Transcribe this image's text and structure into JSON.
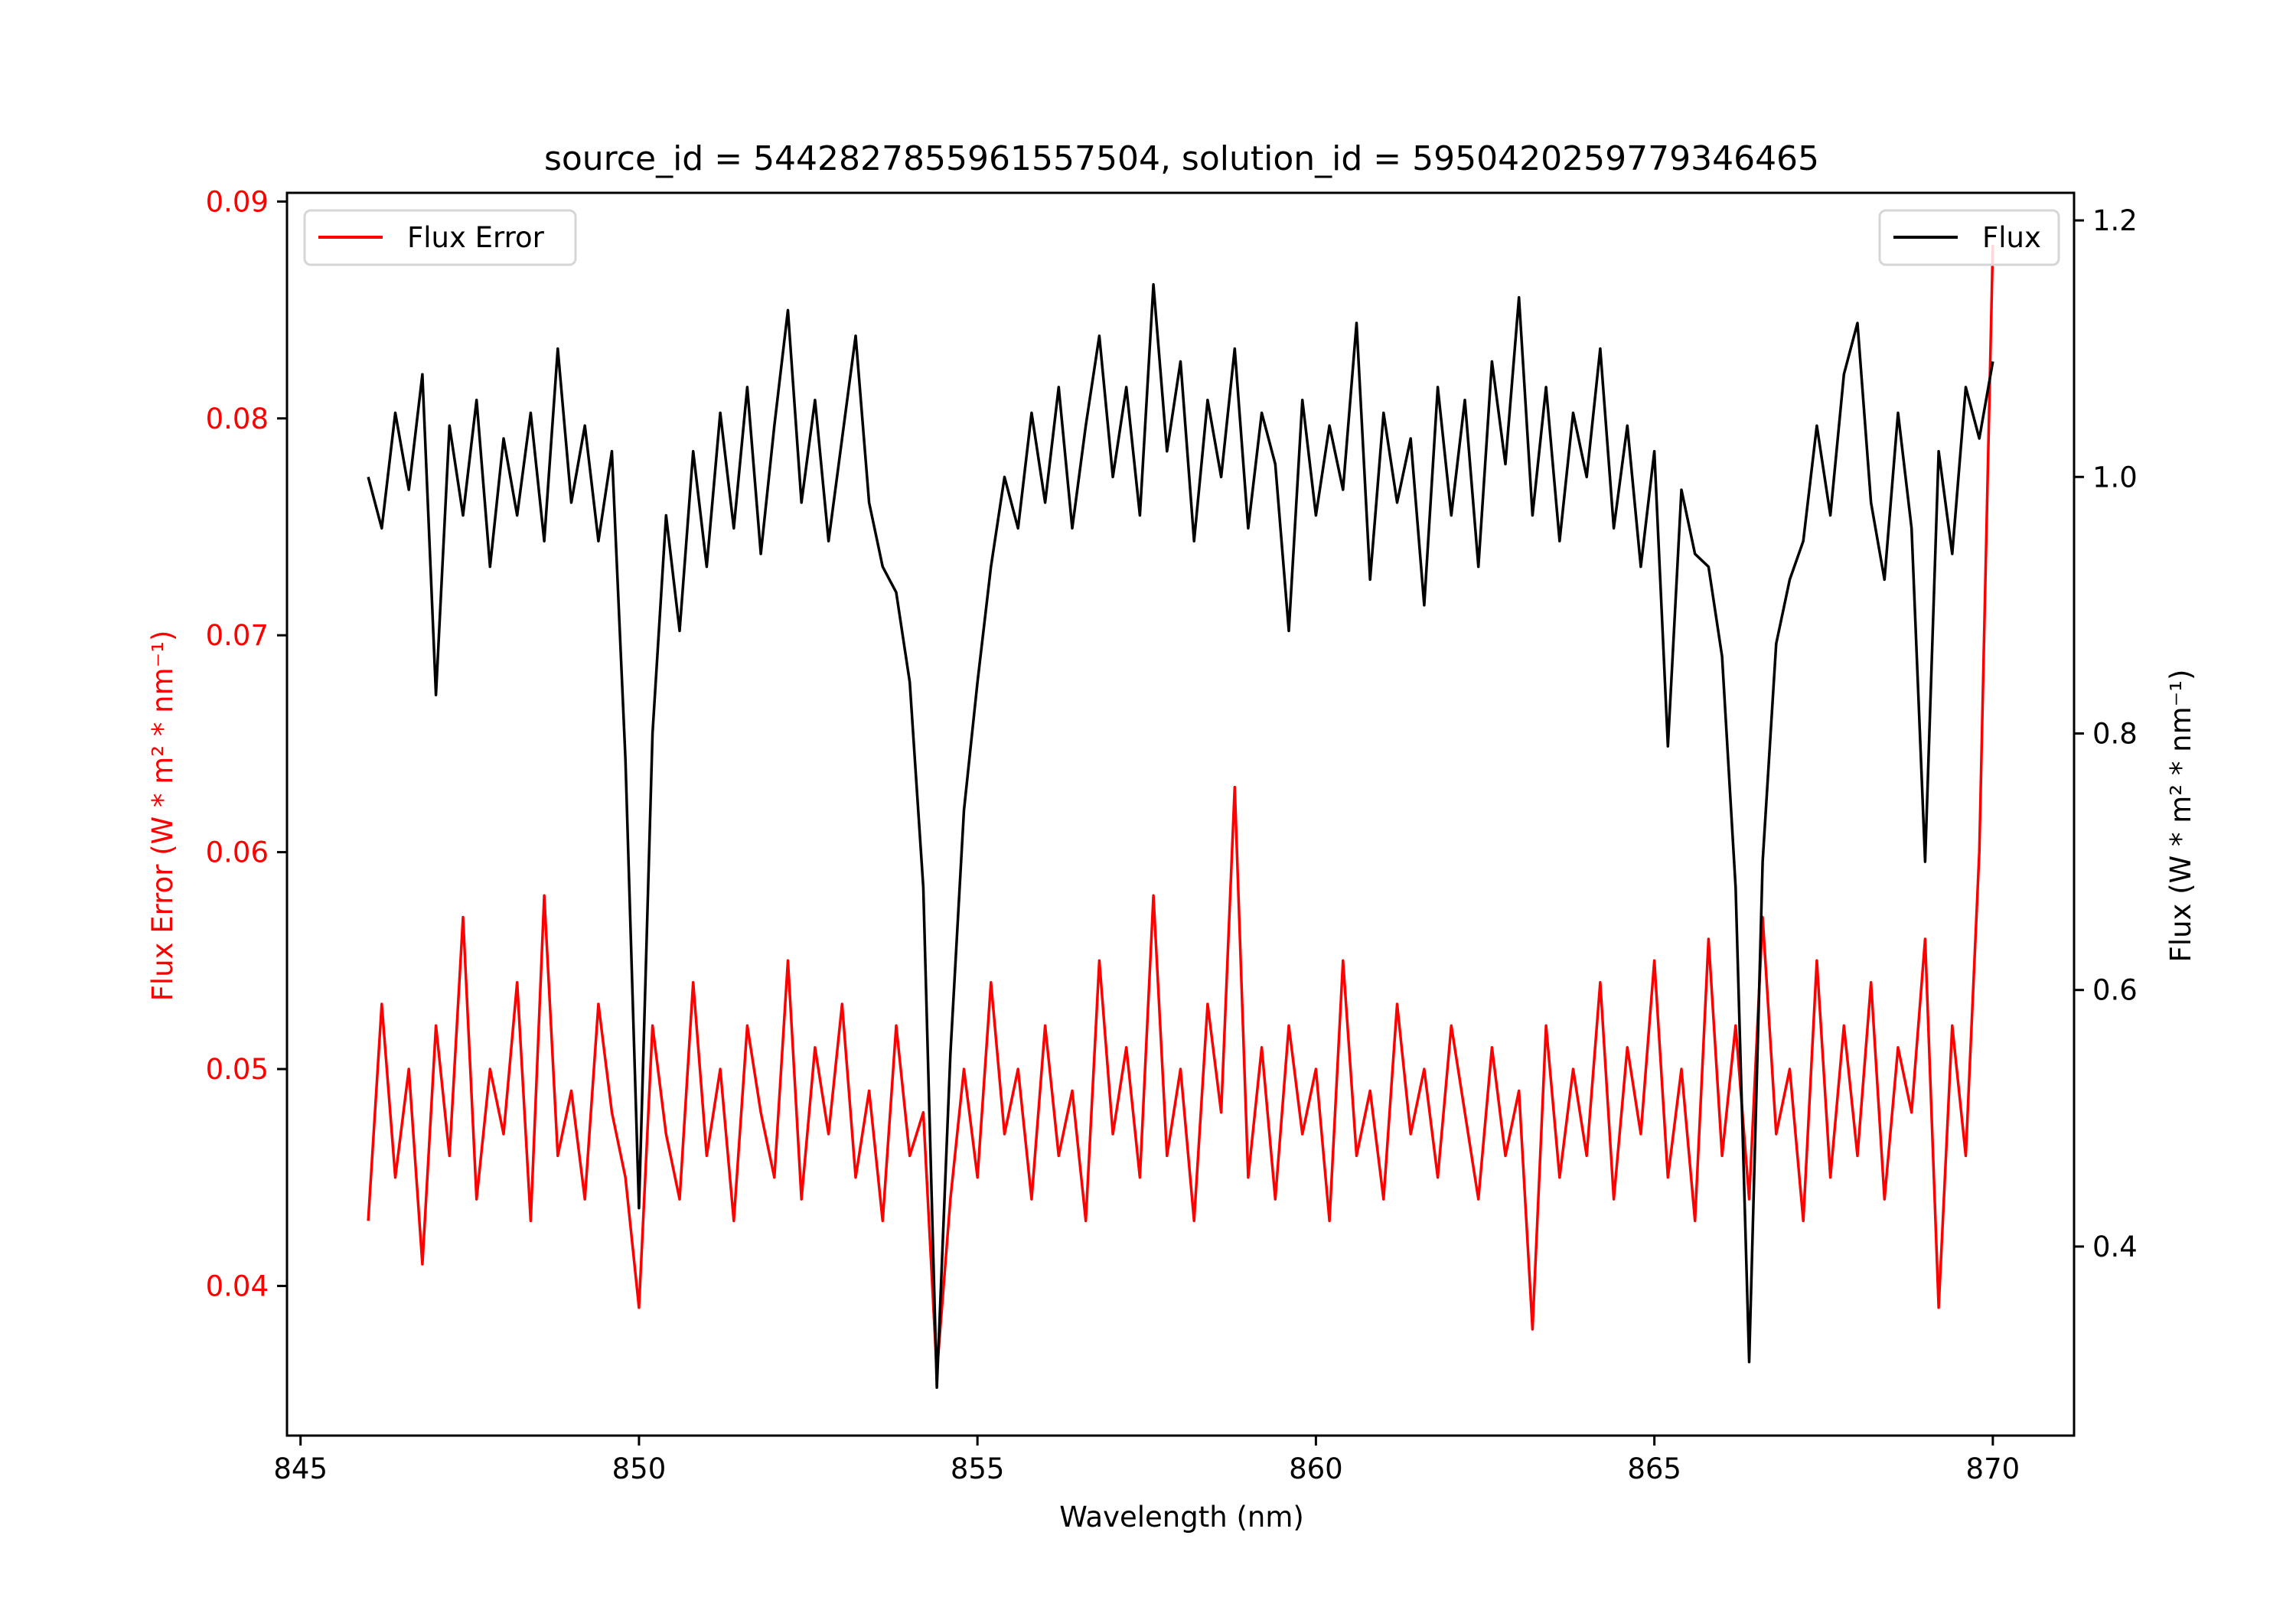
{
  "chart_data": {
    "type": "line",
    "title": "source_id = 5442827855961557504, solution_id = 5950420259779346465",
    "xlabel": "Wavelength (nm)",
    "ylabel_left": "Flux Error (W * m² * nm⁻¹)",
    "ylabel_right": "Flux (W * m² * nm⁻¹)",
    "xlim": [
      844.8,
      871.2
    ],
    "ylim_left": [
      0.0331,
      0.0904
    ],
    "ylim_right": [
      0.2526,
      1.2215
    ],
    "x_ticks": [
      "845",
      "850",
      "855",
      "860",
      "865",
      "870"
    ],
    "y_left_ticks": [
      "0.04",
      "0.05",
      "0.06",
      "0.07",
      "0.08",
      "0.09"
    ],
    "y_right_ticks": [
      "0.4",
      "0.6",
      "0.8",
      "1.0",
      "1.2"
    ],
    "grid": false,
    "x_start": 846.0,
    "x_step": 0.2,
    "series": [
      {
        "name": "Flux Error",
        "axis": "left",
        "color": "#ff0000",
        "legend": "top-left",
        "values": [
          0.043,
          0.053,
          0.045,
          0.05,
          0.041,
          0.052,
          0.046,
          0.057,
          0.044,
          0.05,
          0.047,
          0.054,
          0.043,
          0.058,
          0.046,
          0.049,
          0.044,
          0.053,
          0.048,
          0.045,
          0.039,
          0.052,
          0.047,
          0.044,
          0.054,
          0.046,
          0.05,
          0.043,
          0.052,
          0.048,
          0.045,
          0.055,
          0.044,
          0.051,
          0.047,
          0.053,
          0.045,
          0.049,
          0.043,
          0.052,
          0.046,
          0.048,
          0.036,
          0.044,
          0.05,
          0.045,
          0.054,
          0.047,
          0.05,
          0.044,
          0.052,
          0.046,
          0.049,
          0.043,
          0.055,
          0.047,
          0.051,
          0.045,
          0.058,
          0.046,
          0.05,
          0.043,
          0.053,
          0.048,
          0.063,
          0.045,
          0.051,
          0.044,
          0.052,
          0.047,
          0.05,
          0.043,
          0.055,
          0.046,
          0.049,
          0.044,
          0.053,
          0.047,
          0.05,
          0.045,
          0.052,
          0.048,
          0.044,
          0.051,
          0.046,
          0.049,
          0.038,
          0.052,
          0.045,
          0.05,
          0.046,
          0.054,
          0.044,
          0.051,
          0.047,
          0.055,
          0.045,
          0.05,
          0.043,
          0.056,
          0.046,
          0.052,
          0.044,
          0.057,
          0.047,
          0.05,
          0.043,
          0.055,
          0.045,
          0.052,
          0.046,
          0.054,
          0.044,
          0.051,
          0.048,
          0.056,
          0.039,
          0.052,
          0.046,
          0.06,
          0.088
        ]
      },
      {
        "name": "Flux",
        "axis": "right",
        "color": "#000000",
        "legend": "top-right",
        "values": [
          1.0,
          0.96,
          1.05,
          0.99,
          1.08,
          0.83,
          1.04,
          0.97,
          1.06,
          0.93,
          1.03,
          0.97,
          1.05,
          0.95,
          1.1,
          0.98,
          1.04,
          0.95,
          1.02,
          0.78,
          0.43,
          0.8,
          0.97,
          0.88,
          1.02,
          0.93,
          1.05,
          0.96,
          1.07,
          0.94,
          1.04,
          1.13,
          0.98,
          1.06,
          0.95,
          1.03,
          1.11,
          0.98,
          0.93,
          0.91,
          0.84,
          0.68,
          0.29,
          0.55,
          0.74,
          0.84,
          0.93,
          1.0,
          0.96,
          1.05,
          0.98,
          1.07,
          0.96,
          1.04,
          1.11,
          1.0,
          1.07,
          0.97,
          1.15,
          1.02,
          1.09,
          0.95,
          1.06,
          1.0,
          1.1,
          0.96,
          1.05,
          1.01,
          0.88,
          1.06,
          0.97,
          1.04,
          0.99,
          1.12,
          0.92,
          1.05,
          0.98,
          1.03,
          0.9,
          1.07,
          0.97,
          1.06,
          0.93,
          1.09,
          1.01,
          1.14,
          0.97,
          1.07,
          0.95,
          1.05,
          1.0,
          1.1,
          0.96,
          1.04,
          0.93,
          1.02,
          0.79,
          0.99,
          0.94,
          0.93,
          0.86,
          0.68,
          0.31,
          0.7,
          0.87,
          0.92,
          0.95,
          1.04,
          0.97,
          1.08,
          1.12,
          0.98,
          0.92,
          1.05,
          0.96,
          0.7,
          1.02,
          0.94,
          1.07,
          1.03,
          1.09
        ]
      }
    ]
  }
}
